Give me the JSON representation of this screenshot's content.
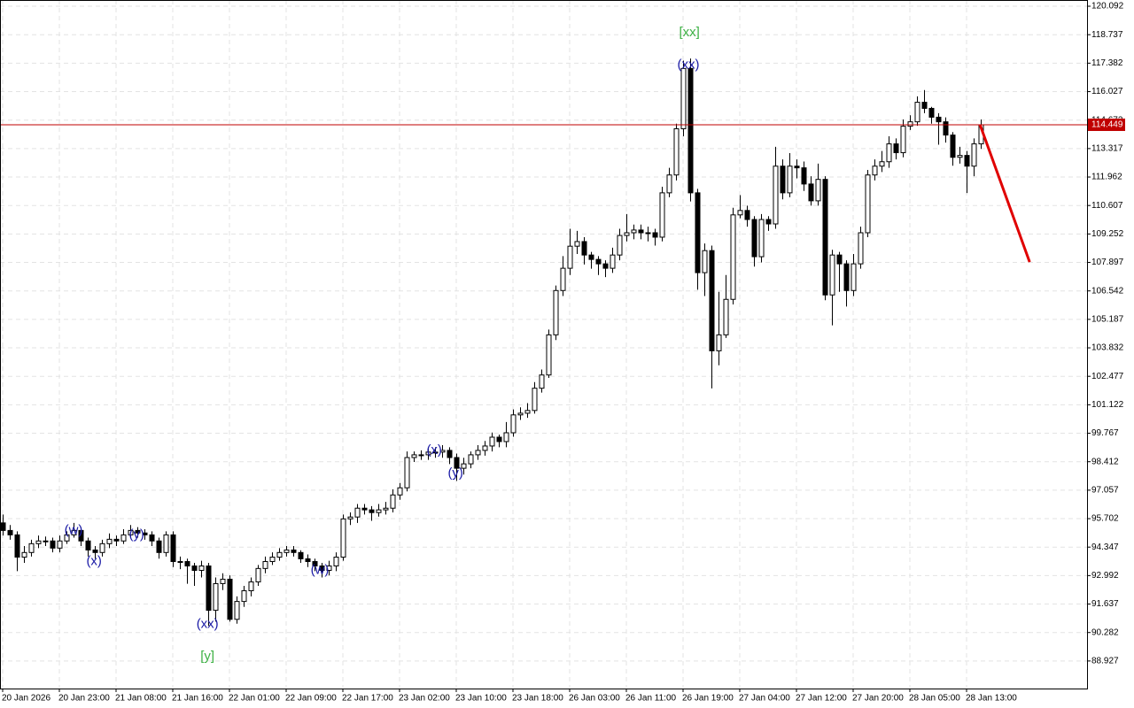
{
  "chart_data": {
    "type": "candlestick",
    "bull_color": "#ffffff",
    "bear_color": "#000000",
    "outline_color": "#000000",
    "grid": true,
    "ylim": [
      87.616,
      120.388
    ],
    "xlim": [
      -0.375,
      153
    ],
    "yticks": [
      120.092,
      118.737,
      117.382,
      116.027,
      114.672,
      113.317,
      111.962,
      110.607,
      109.252,
      107.897,
      106.542,
      105.187,
      103.832,
      102.477,
      101.122,
      99.767,
      98.412,
      97.057,
      95.702,
      94.347,
      92.992,
      91.637,
      90.282,
      88.927
    ],
    "xticks": [
      {
        "value": 0,
        "label": "20 Jan 2026"
      },
      {
        "value": 8,
        "label": "20 Jan 23:00"
      },
      {
        "value": 16,
        "label": "21 Jan 08:00"
      },
      {
        "value": 24,
        "label": "21 Jan 16:00"
      },
      {
        "value": 32,
        "label": "22 Jan 01:00"
      },
      {
        "value": 40,
        "label": "22 Jan 09:00"
      },
      {
        "value": 48,
        "label": "22 Jan 17:00"
      },
      {
        "value": 56,
        "label": "23 Jan 02:00"
      },
      {
        "value": 64,
        "label": "23 Jan 10:00"
      },
      {
        "value": 72,
        "label": "23 Jan 18:00"
      },
      {
        "value": 80,
        "label": "26 Jan 03:00"
      },
      {
        "value": 88,
        "label": "26 Jan 11:00"
      },
      {
        "value": 96,
        "label": "26 Jan 19:00"
      },
      {
        "value": 104,
        "label": "27 Jan 04:00"
      },
      {
        "value": 112,
        "label": "27 Jan 12:00"
      },
      {
        "value": 120,
        "label": "27 Jan 20:00"
      },
      {
        "value": 128,
        "label": "28 Jan 05:00"
      },
      {
        "value": 136,
        "label": "28 Jan 13:00"
      }
    ],
    "open": [
      95.5,
      95.14,
      94.93,
      93.87,
      94.09,
      94.51,
      94.64,
      94.64,
      94.3,
      94.64,
      94.93,
      95.14,
      94.64,
      94.21,
      94.09,
      94.51,
      94.72,
      94.64,
      94.93,
      95.14,
      95.02,
      94.93,
      94.64,
      94.09,
      94.93,
      93.66,
      93.66,
      93.45,
      93.24,
      93.45,
      91.34,
      92.61,
      92.82,
      90.91,
      91.76,
      92.27,
      92.69,
      93.33,
      93.66,
      93.87,
      94.09,
      94.21,
      94.09,
      93.79,
      93.66,
      93.45,
      93.24,
      93.45,
      93.87,
      95.69,
      95.78,
      96.2,
      96.12,
      95.99,
      96.12,
      96.2,
      96.83,
      97.17,
      98.61,
      98.74,
      98.74,
      98.87,
      98.87,
      98.95,
      98.61,
      98.1,
      98.31,
      98.74,
      98.95,
      99.16,
      99.58,
      99.37,
      99.79,
      100.64,
      100.72,
      100.85,
      101.91,
      102.54,
      104.45,
      106.56,
      107.62,
      108.67,
      108.89,
      108.25,
      108.04,
      107.83,
      107.62,
      108.25,
      109.18,
      109.31,
      109.44,
      109.31,
      109.31,
      109.1,
      111.21,
      112.06,
      114.26,
      117.13,
      111.21,
      107.41,
      108.46,
      103.69,
      104.45,
      106.14,
      110.16,
      110.37,
      109.94,
      108.17,
      109.94,
      109.73,
      112.48,
      111.21,
      112.48,
      112.4,
      111.63,
      110.83,
      111.85,
      106.35,
      108.25,
      107.83,
      106.56,
      107.83,
      109.31,
      112.06,
      112.48,
      112.69,
      113.54,
      113.12,
      114.38,
      114.59,
      115.52,
      115.23,
      114.81,
      114.59,
      113.96,
      112.9,
      112.99,
      112.48,
      113.54
    ],
    "high": [
      95.9,
      95.4,
      95.1,
      94.4,
      94.7,
      94.9,
      94.85,
      94.8,
      94.9,
      95.1,
      95.5,
      95.3,
      94.8,
      94.4,
      94.7,
      95.0,
      94.9,
      95.2,
      95.4,
      95.3,
      95.2,
      95.1,
      94.8,
      95.1,
      95.1,
      93.9,
      93.8,
      93.6,
      93.7,
      93.6,
      92.9,
      93.1,
      93.0,
      92.0,
      92.5,
      92.9,
      93.5,
      93.9,
      94.1,
      94.3,
      94.4,
      94.4,
      94.2,
      94.0,
      93.8,
      93.6,
      93.7,
      94.1,
      95.9,
      96.0,
      96.4,
      96.4,
      96.3,
      96.4,
      96.5,
      97.1,
      97.4,
      98.9,
      98.9,
      98.95,
      99.1,
      99.1,
      99.2,
      99.1,
      98.8,
      98.6,
      98.9,
      99.2,
      99.4,
      99.8,
      99.7,
      100.3,
      100.9,
      101.0,
      101.2,
      102.2,
      102.8,
      104.7,
      106.8,
      108.2,
      109.5,
      109.4,
      109.1,
      108.4,
      108.2,
      108.0,
      108.6,
      109.5,
      110.2,
      109.7,
      109.7,
      109.6,
      109.5,
      111.5,
      112.4,
      114.5,
      117.5,
      117.6,
      111.4,
      108.8,
      108.7,
      106.5,
      107.3,
      110.5,
      111.1,
      110.6,
      110.1,
      110.2,
      110.1,
      113.4,
      112.8,
      113.1,
      112.8,
      112.7,
      112.0,
      112.6,
      112.0,
      108.5,
      108.4,
      108.0,
      108.3,
      109.6,
      112.3,
      112.8,
      113.2,
      113.9,
      113.8,
      114.7,
      114.9,
      115.8,
      116.1,
      115.3,
      115.0,
      114.8,
      114.1,
      113.4,
      113.2,
      113.8,
      114.7
    ],
    "low": [
      94.9,
      94.7,
      93.2,
      93.6,
      93.9,
      94.3,
      94.4,
      94.1,
      94.1,
      94.5,
      94.8,
      94.4,
      93.9,
      93.8,
      93.9,
      94.3,
      94.4,
      94.5,
      94.8,
      94.8,
      94.7,
      94.4,
      93.8,
      93.9,
      93.4,
      93.3,
      92.6,
      92.5,
      92.9,
      90.6,
      90.8,
      92.3,
      90.8,
      90.7,
      91.5,
      92.0,
      92.5,
      93.1,
      93.5,
      93.7,
      93.9,
      93.9,
      93.6,
      93.4,
      93.2,
      92.9,
      93.0,
      93.2,
      93.7,
      95.4,
      95.5,
      95.9,
      95.6,
      95.8,
      95.9,
      96.0,
      96.6,
      97.0,
      98.4,
      98.5,
      98.5,
      98.6,
      98.6,
      98.3,
      97.5,
      97.8,
      98.1,
      98.5,
      98.7,
      98.9,
      99.1,
      99.1,
      99.6,
      100.4,
      100.5,
      100.7,
      101.7,
      102.4,
      104.2,
      106.3,
      107.3,
      108.3,
      107.8,
      107.6,
      107.3,
      107.2,
      107.4,
      108.0,
      108.9,
      109.0,
      109.0,
      108.9,
      108.7,
      108.9,
      111.0,
      111.8,
      113.9,
      110.8,
      106.6,
      106.3,
      101.9,
      103.0,
      104.3,
      105.9,
      110.0,
      109.6,
      107.7,
      107.9,
      109.4,
      109.5,
      110.9,
      111.0,
      111.9,
      111.3,
      110.6,
      110.6,
      106.1,
      104.9,
      106.5,
      105.8,
      106.3,
      107.6,
      109.1,
      111.8,
      112.2,
      112.4,
      112.8,
      112.9,
      114.2,
      114.4,
      115.0,
      114.5,
      113.5,
      113.6,
      112.5,
      112.6,
      111.2,
      112.0,
      113.3
    ],
    "close": [
      95.14,
      94.93,
      93.87,
      94.09,
      94.51,
      94.64,
      94.64,
      94.3,
      94.64,
      94.93,
      95.14,
      94.64,
      94.21,
      94.09,
      94.51,
      94.72,
      94.64,
      94.93,
      95.14,
      95.02,
      94.93,
      94.64,
      94.09,
      94.93,
      93.66,
      93.66,
      93.45,
      93.24,
      93.45,
      91.34,
      92.61,
      92.82,
      90.91,
      91.76,
      92.27,
      92.69,
      93.33,
      93.66,
      93.87,
      94.09,
      94.21,
      94.09,
      93.79,
      93.66,
      93.45,
      93.24,
      93.45,
      93.87,
      95.69,
      95.78,
      96.2,
      96.12,
      95.99,
      96.12,
      96.2,
      96.83,
      97.17,
      98.61,
      98.74,
      98.74,
      98.87,
      98.87,
      98.95,
      98.61,
      98.1,
      98.31,
      98.74,
      98.95,
      99.16,
      99.58,
      99.37,
      99.79,
      100.64,
      100.72,
      100.85,
      101.91,
      102.54,
      104.45,
      106.56,
      107.62,
      108.67,
      108.89,
      108.25,
      108.04,
      107.83,
      107.62,
      108.25,
      109.18,
      109.31,
      109.44,
      109.31,
      109.31,
      109.1,
      111.21,
      112.06,
      114.26,
      117.13,
      111.21,
      107.41,
      108.46,
      103.69,
      104.45,
      106.14,
      110.16,
      110.37,
      109.94,
      108.17,
      109.94,
      109.73,
      112.48,
      111.21,
      112.48,
      112.4,
      111.63,
      110.83,
      111.85,
      106.35,
      108.25,
      107.83,
      106.56,
      107.83,
      109.31,
      112.06,
      112.48,
      112.69,
      113.54,
      113.12,
      114.38,
      114.59,
      115.52,
      115.23,
      114.81,
      114.59,
      113.96,
      112.9,
      112.99,
      112.48,
      113.54,
      114.449
    ],
    "current_price": 114.449,
    "current_price_color": "#c00000",
    "forecast": {
      "color": "#e00000",
      "x": [
        137.9,
        144.9
      ],
      "y": [
        114.449,
        107.914
      ]
    },
    "annotations": [
      {
        "text": "(w)",
        "x": 10,
        "y": 95.14,
        "color": "#1a1aa6"
      },
      {
        "text": "(x)",
        "x": 12.9,
        "y": 93.66,
        "color": "#1a1aa6"
      },
      {
        "text": "(y)",
        "x": 18.9,
        "y": 94.93,
        "color": "#1a1aa6"
      },
      {
        "text": "(xx)",
        "x": 28.9,
        "y": 90.66,
        "color": "#1a1aa6"
      },
      {
        "text": "[y]",
        "x": 28.9,
        "y": 89.14,
        "color": "#3cb043"
      },
      {
        "text": "(w)",
        "x": 44.75,
        "y": 93.24,
        "color": "#1a1aa6"
      },
      {
        "text": "(x)",
        "x": 60.9,
        "y": 98.95,
        "color": "#1a1aa6"
      },
      {
        "text": "(y)",
        "x": 63.9,
        "y": 97.85,
        "color": "#1a1aa6"
      },
      {
        "text": "(xx)",
        "x": 96.75,
        "y": 117.3,
        "color": "#1a1aa6"
      },
      {
        "text": "[xx]",
        "x": 96.9,
        "y": 118.82,
        "color": "#3cb043"
      }
    ]
  }
}
